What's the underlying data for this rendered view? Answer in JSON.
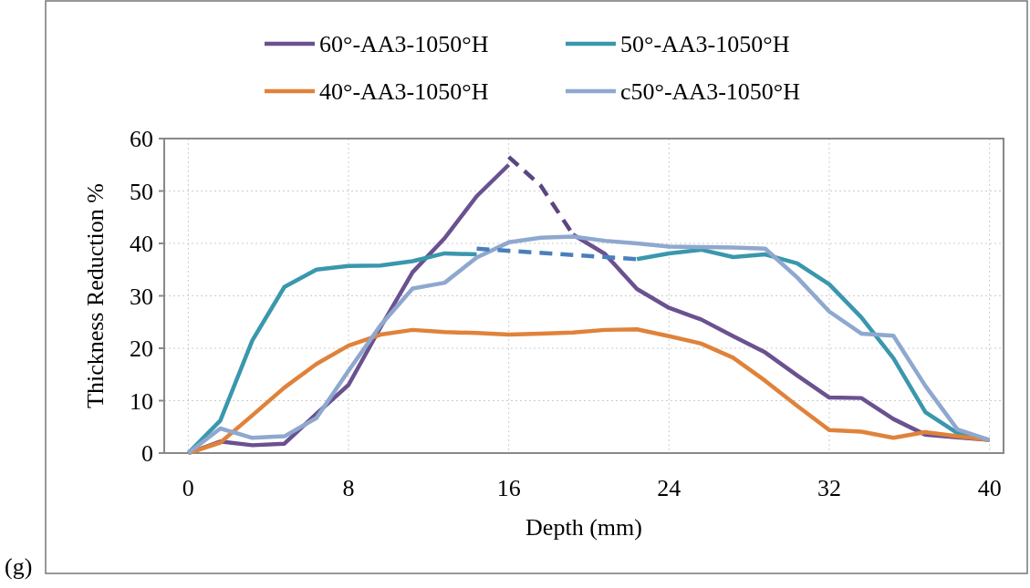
{
  "chart_data": {
    "type": "line",
    "xlabel": "Depth (mm)",
    "ylabel": "Thickness Reduction %",
    "annotations": [
      "(g)"
    ],
    "x": [
      0,
      1.6,
      3.2,
      4.8,
      6.4,
      8,
      9.6,
      11.2,
      12.8,
      14.4,
      16,
      17.6,
      19.2,
      20.8,
      22.4,
      24,
      25.6,
      27.2,
      28.8,
      30.4,
      32,
      33.6,
      35.2,
      36.8,
      38.4,
      40
    ],
    "series": [
      {
        "name": "60°-AA3-1050°H",
        "color": "#6a5190",
        "values": [
          0,
          2.2,
          1.5,
          1.8,
          7.5,
          13,
          24,
          34.5,
          41,
          49,
          55,
          null,
          41.7,
          38,
          31.3,
          27.7,
          25.5,
          22.3,
          19.2,
          14.8,
          10.6,
          10.5,
          6.5,
          3.5,
          3,
          2.5
        ]
      },
      {
        "name": "50°-AA3-1050°H",
        "color": "#3a97ad",
        "values": [
          0,
          6.2,
          21.5,
          31.7,
          35,
          35.7,
          35.8,
          36.6,
          38.1,
          37.9,
          null,
          null,
          null,
          null,
          37,
          38.1,
          38.8,
          37.4,
          37.9,
          36.2,
          32.2,
          25.9,
          18.1,
          7.8,
          3.8,
          2.5
        ]
      },
      {
        "name": "40°-AA3-1050°H",
        "color": "#e0823a",
        "values": [
          0,
          2,
          7.2,
          12.5,
          17,
          20.5,
          22.6,
          23.5,
          23.1,
          22.9,
          22.6,
          22.8,
          23,
          23.5,
          23.6,
          22.3,
          20.9,
          18.2,
          13.8,
          9,
          4.4,
          4.1,
          2.9,
          4,
          3.2,
          2.5
        ]
      },
      {
        "name": "c50°-AA3-1050°H",
        "color": "#8ea8cf",
        "values": [
          0,
          4.7,
          2.9,
          3.2,
          6.7,
          15.7,
          24.4,
          31.4,
          32.5,
          37.3,
          40.2,
          41.1,
          41.3,
          40.5,
          40,
          39.4,
          39.3,
          39.2,
          39,
          33.5,
          27,
          22.8,
          22.4,
          12.8,
          4.5,
          2.5
        ]
      },
      {
        "color": "#5b4580",
        "line_style": "dashed",
        "x": [
          16,
          17.6,
          19.2
        ],
        "values": [
          56.5,
          51,
          41.7
        ]
      },
      {
        "color": "#4a7ebb",
        "line_style": "dashed",
        "x": [
          14.4,
          22.4
        ],
        "values": [
          39,
          37
        ]
      }
    ],
    "xlim": [
      -1.2,
      40.7
    ],
    "xticks": [
      0,
      8,
      16,
      24,
      32,
      40
    ],
    "ylim": [
      0,
      60
    ],
    "yticks": [
      0,
      10,
      20,
      30,
      40,
      50,
      60
    ],
    "grid": true,
    "legend": "top",
    "line_style": "solid"
  }
}
